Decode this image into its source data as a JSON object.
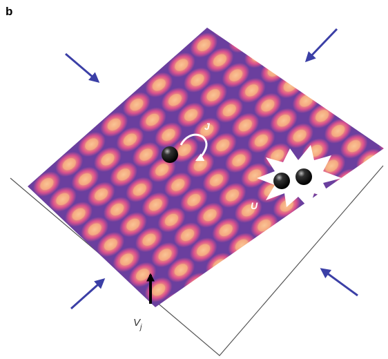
{
  "panel_label": "b",
  "labels": {
    "tunneling": "J",
    "interaction": "U",
    "potential": "V",
    "potential_subscript": "j"
  }
}
